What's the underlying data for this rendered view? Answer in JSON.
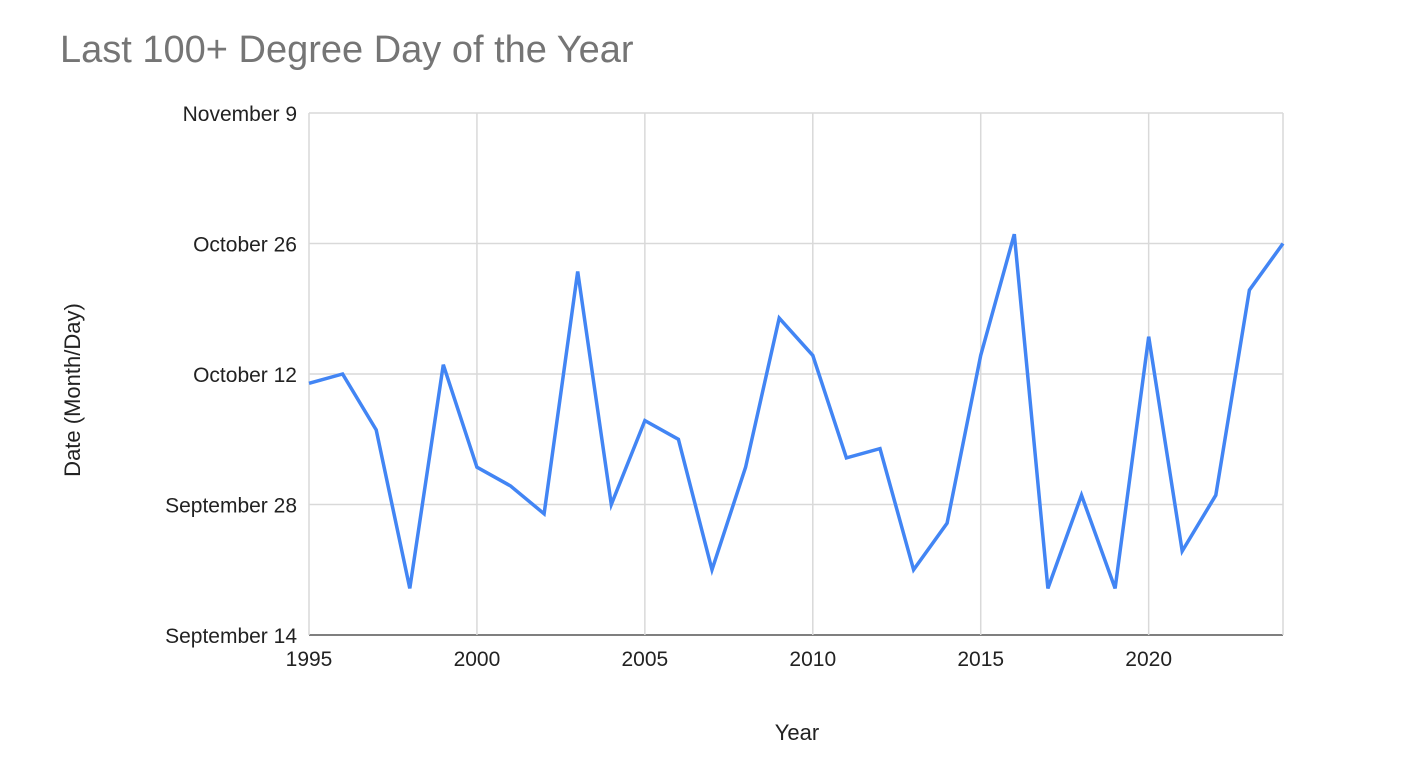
{
  "chart_data": {
    "type": "line",
    "title": "Last 100+ Degree Day of the Year",
    "xlabel": "Year",
    "ylabel": "Date (Month/Day)",
    "xlim": [
      1995,
      2024
    ],
    "ylim": [
      "September 14",
      "November 9"
    ],
    "x_ticks": [
      "1995",
      "2000",
      "2005",
      "2010",
      "2015",
      "2020"
    ],
    "y_ticks": [
      "September 14",
      "September 28",
      "October 12",
      "October 26",
      "November 9"
    ],
    "grid": true,
    "legend": "none",
    "colors": {
      "line": "#4285f4",
      "title": "#757575",
      "grid": "#d9d9d9",
      "text": "#222222"
    },
    "series": [
      {
        "x": [
          1995,
          1996,
          1997,
          1998,
          1999,
          2000,
          2001,
          2002,
          2003,
          2004,
          2005,
          2006,
          2007,
          2008,
          2009,
          2010,
          2011,
          2012,
          2013,
          2014,
          2015,
          2016,
          2017,
          2018,
          2019,
          2020,
          2021,
          2022,
          2023,
          2024
        ],
        "y": [
          "October 11",
          "October 12",
          "October 6",
          "September 19",
          "October 13",
          "October 2",
          "September 30",
          "September 27",
          "October 23",
          "September 28",
          "October 7",
          "October 5",
          "September 21",
          "October 2",
          "October 18",
          "October 14",
          "October 3",
          "October 4",
          "September 21",
          "September 26",
          "October 14",
          "October 27",
          "September 19",
          "September 29",
          "September 19",
          "October 16",
          "September 23",
          "September 29",
          "October 21",
          "October 26"
        ]
      }
    ]
  }
}
